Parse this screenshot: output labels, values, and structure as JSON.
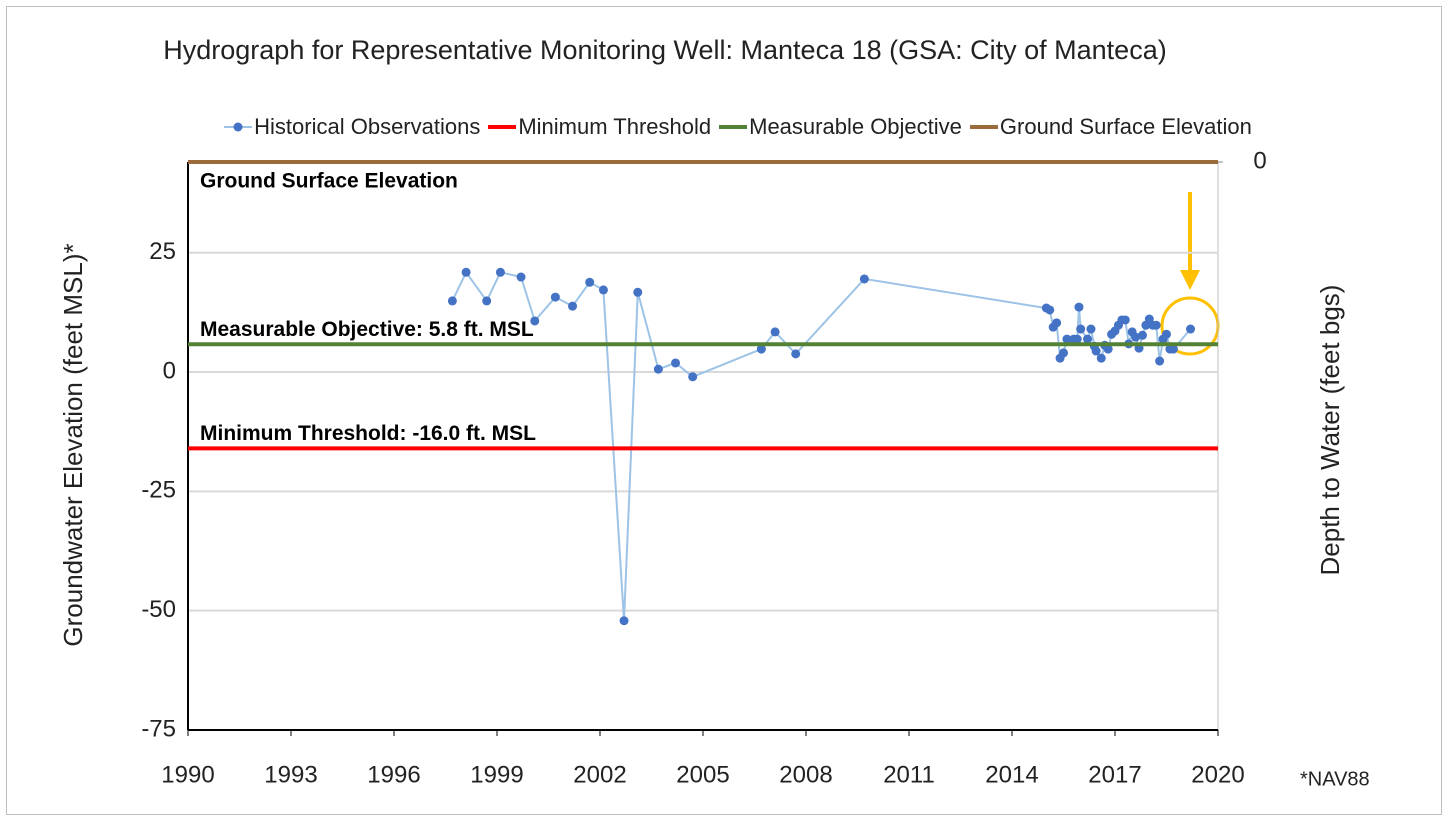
{
  "chart_data": {
    "type": "line",
    "title": "Hydrograph for Representative Monitoring Well: Manteca 18 (GSA: City of Manteca)",
    "y_label": "Groundwater Elevation (feet MSL)*",
    "y2_label": "Depth to Water (feet bgs)",
    "footnote": "*NAV88",
    "xlim": [
      1990,
      2020
    ],
    "xticks": [
      1990,
      1993,
      1996,
      1999,
      2002,
      2005,
      2008,
      2011,
      2014,
      2017,
      2020
    ],
    "ylim": [
      -75,
      44
    ],
    "yticks": [
      -75,
      -50,
      -25,
      0,
      25
    ],
    "y2lim": [
      119,
      0
    ],
    "y2ticks": [
      0
    ],
    "grid": true,
    "series": [
      {
        "name": "Historical Observations",
        "color": "#4472c4",
        "line_color": "#9dc3e6",
        "x": [
          1997.7,
          1998.1,
          1998.7,
          1999.1,
          1999.7,
          2000.1,
          2000.7,
          2001.2,
          2001.7,
          2002.1,
          2002.7,
          2003.1,
          2003.7,
          2004.2,
          2004.7,
          2006.7,
          2007.1,
          2007.7,
          2009.7,
          2015.0,
          2015.1,
          2015.2,
          2015.3,
          2015.4,
          2015.5,
          2015.6,
          2015.8,
          2015.9,
          2015.95,
          2016.0,
          2016.2,
          2016.3,
          2016.4,
          2016.45,
          2016.6,
          2016.7,
          2016.8,
          2016.9,
          2017.0,
          2017.1,
          2017.2,
          2017.3,
          2017.4,
          2017.5,
          2017.6,
          2017.7,
          2017.8,
          2017.9,
          2018.0,
          2018.1,
          2018.2,
          2018.3,
          2018.4,
          2018.5,
          2018.6,
          2018.7,
          2019.2
        ],
        "values": [
          14.9,
          20.9,
          14.9,
          20.9,
          19.9,
          10.7,
          15.7,
          13.8,
          18.8,
          17.2,
          -52.1,
          16.7,
          0.6,
          1.9,
          -1.0,
          4.8,
          8.4,
          3.8,
          19.5,
          13.4,
          13.0,
          9.4,
          10.3,
          2.9,
          4.0,
          6.9,
          6.9,
          6.9,
          13.6,
          9.0,
          6.9,
          9.0,
          5.4,
          4.4,
          2.9,
          5.6,
          4.8,
          7.9,
          8.6,
          9.8,
          10.9,
          10.9,
          5.9,
          8.4,
          7.3,
          5.0,
          7.7,
          9.8,
          11.1,
          9.8,
          9.8,
          2.3,
          6.9,
          7.9,
          4.8,
          4.8,
          9.0
        ]
      },
      {
        "name": "Minimum Threshold",
        "color": "#ff0000",
        "x": [
          1990,
          2020
        ],
        "values": [
          -16.0,
          -16.0
        ]
      },
      {
        "name": "Measurable Objective",
        "color": "#548235",
        "x": [
          1990,
          2020
        ],
        "values": [
          5.8,
          5.8
        ]
      },
      {
        "name": "Ground Surface Elevation",
        "color": "#9c6b3c",
        "x": [
          1990,
          2020
        ],
        "values": [
          44,
          44
        ]
      }
    ],
    "annotations": [
      "Ground Surface Elevation",
      "Measurable Objective: 5.8 ft. MSL",
      "Minimum Threshold: -16.0 ft. MSL"
    ]
  }
}
